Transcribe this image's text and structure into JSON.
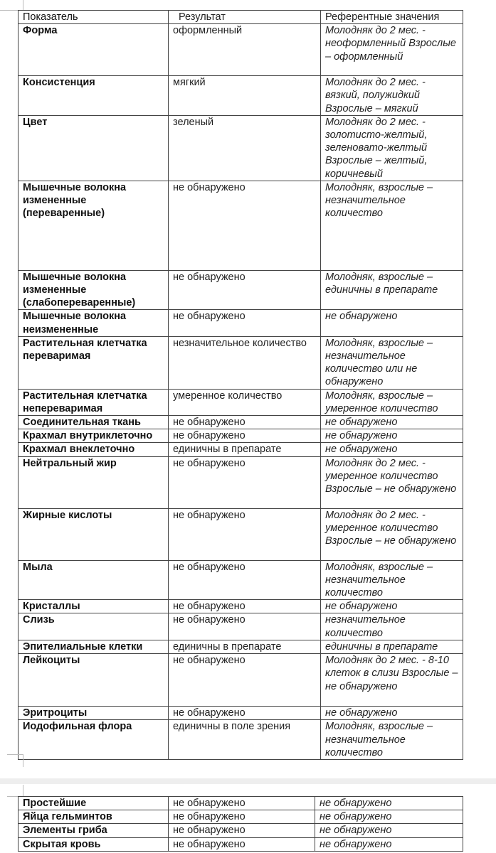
{
  "header": {
    "col1": "Показатель",
    "col2": "Результат",
    "col3": "Референтные значения"
  },
  "rows": [
    {
      "name": "Форма",
      "result": "оформленный",
      "ref": "Молодняк до 2 мес. - неоформленный Взрослые – оформленный"
    },
    {
      "name": "Консистенция",
      "result": "мягкий",
      "ref": "Молодняк до 2 мес. - вязкий, полужидкий Взрослые – мягкий"
    },
    {
      "name": "Цвет",
      "result": "зеленый",
      "ref": "Молодняк до 2 мес. - золотисто-желтый, зеленовато-желтый Взрослые – желтый, коричневый"
    },
    {
      "name": "Мышечные волокна измененные (переваренные)",
      "result": "не обнаружено",
      "ref": "Молодняк, взрослые – незначительное количество"
    },
    {
      "name": "Мышечные волокна измененные (слабопереваренные)",
      "result": "не обнаружено",
      "ref": "Молодняк, взрослые – единичны в препарате"
    },
    {
      "name": "Мышечные волокна неизмененные",
      "result": "не обнаружено",
      "ref": "не обнаружено"
    },
    {
      "name": "Растительная клетчатка переваримая",
      "result": "незначительное количество",
      "ref": "Молодняк, взрослые – незначительное количество или не обнаружено"
    },
    {
      "name": "Растительная клетчатка непереваримая",
      "result": "умеренное количество",
      "ref": "Молодняк, взрослые – умеренное количество"
    },
    {
      "name": "Соединительная ткань",
      "result": "не обнаружено",
      "ref": "не обнаружено"
    },
    {
      "name": "Крахмал внутриклеточно",
      "result": "не обнаружено",
      "ref": "не обнаружено"
    },
    {
      "name": "Крахмал внеклеточно",
      "result": "единичны в препарате",
      "ref": "не обнаружено"
    },
    {
      "name": "Нейтральный жир",
      "result": "не обнаружено",
      "ref": "Молодняк до 2 мес. - умеренное количество Взрослые – не обнаружено"
    },
    {
      "name": "Жирные кислоты",
      "result": "не обнаружено",
      "ref": "Молодняк до 2 мес. - умеренное количество Взрослые – не обнаружено"
    },
    {
      "name": "Мыла",
      "result": "не обнаружено",
      "ref": "Молодняк, взрослые – незначительное количество"
    },
    {
      "name": "Кристаллы",
      "result": "не обнаружено",
      "ref": "не обнаружено"
    },
    {
      "name": "Слизь",
      "result": "не обнаружено",
      "ref": "незначительное количество"
    },
    {
      "name": "Эпителиальные клетки",
      "result": "единичны в препарате",
      "ref": "единичны в препарате"
    },
    {
      "name": "Лейкоциты",
      "result": "не обнаружено",
      "ref": "Молодняк до 2 мес. - 8-10 клеток в слизи Взрослые – не обнаружено"
    },
    {
      "name": "Эритроциты",
      "result": "не обнаружено",
      "ref": "не обнаружено"
    },
    {
      "name": "Иодофильная флора",
      "result": "единичны в поле зрения",
      "ref": "Молодняк, взрослые – незначительное количество"
    }
  ],
  "rows2": [
    {
      "name": "Простейшие",
      "result": "не обнаружено",
      "ref": "не обнаружено"
    },
    {
      "name": "Яйца гельминтов",
      "result": "не обнаружено",
      "ref": "не обнаружено"
    },
    {
      "name": "Элементы гриба",
      "result": "не обнаружено",
      "ref": "не обнаружено"
    },
    {
      "name": "Скрытая кровь",
      "result": "не обнаружено",
      "ref": "не обнаружено"
    }
  ]
}
